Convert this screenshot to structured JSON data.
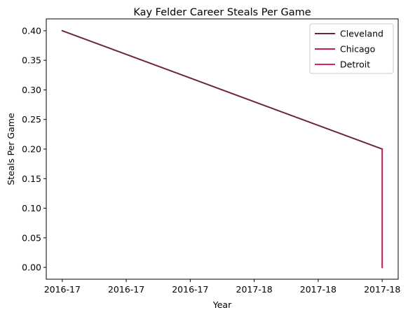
{
  "chart_data": {
    "type": "line",
    "title": "Kay Felder Career Steals Per Game",
    "xlabel": "Year",
    "ylabel": "Steals Per Game",
    "x_tick_labels": [
      "2016-17",
      "2016-17",
      "2016-17",
      "2017-18",
      "2017-18",
      "2017-18"
    ],
    "y_ticks": [
      "0.00",
      "0.05",
      "0.10",
      "0.15",
      "0.20",
      "0.25",
      "0.30",
      "0.35",
      "0.40"
    ],
    "ylim": [
      -0.02,
      0.42
    ],
    "xlim": [
      -0.25,
      5.25
    ],
    "grid": false,
    "legend_position": "top-right",
    "series": [
      {
        "name": "Cleveland",
        "color": "#6b2541",
        "points": [
          {
            "x": 0,
            "y": 0.4
          },
          {
            "x": 5,
            "y": 0.2
          }
        ]
      },
      {
        "name": "Chicago",
        "color": "#bc1f58",
        "points": [
          {
            "x": 5,
            "y": 0.2
          },
          {
            "x": 5,
            "y": 0.0
          }
        ]
      },
      {
        "name": "Detroit",
        "color": "#e0205b",
        "points": [
          {
            "x": 5,
            "y": 0.0
          },
          {
            "x": 5,
            "y": 0.0
          }
        ]
      }
    ]
  }
}
